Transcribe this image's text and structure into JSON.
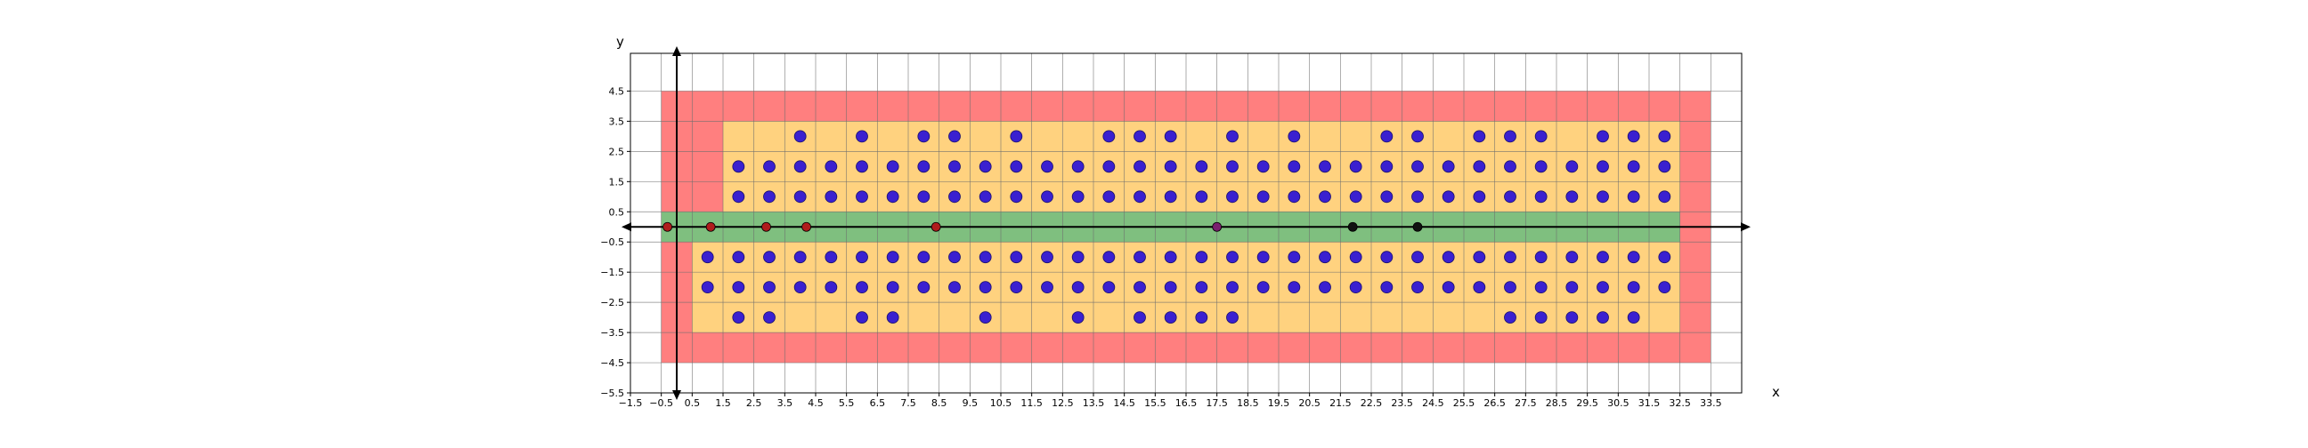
{
  "chart_data": {
    "type": "scatter",
    "title": "",
    "xlabel": "x",
    "ylabel": "y",
    "xlim": [
      -1.5,
      34.5
    ],
    "ylim": [
      -5.5,
      5.75
    ],
    "grid": true,
    "x_ticks": [
      "-1.5",
      "-0.5",
      "0.5",
      "1.5",
      "2.5",
      "3.5",
      "4.5",
      "5.5",
      "6.5",
      "7.5",
      "8.5",
      "9.5",
      "10.5",
      "11.5",
      "12.5",
      "13.5",
      "14.5",
      "15.5",
      "16.5",
      "17.5",
      "18.5",
      "19.5",
      "20.5",
      "21.5",
      "22.5",
      "23.5",
      "24.5",
      "25.5",
      "26.5",
      "27.5",
      "28.5",
      "29.5",
      "30.5",
      "31.5",
      "32.5",
      "33.5"
    ],
    "y_ticks": [
      "4.5",
      "3.5",
      "2.5",
      "1.5",
      "0.5",
      "-0.5",
      "-1.5",
      "-2.5",
      "-3.5",
      "-4.5",
      "-5.5"
    ],
    "regions": [
      {
        "color": "#ff7f7f",
        "x": [
          -0.5,
          33.5
        ],
        "y": [
          -4.5,
          4.5
        ]
      },
      {
        "color": "#ffd27f",
        "x": [
          1.5,
          32.5
        ],
        "y": [
          0.5,
          3.5
        ]
      },
      {
        "color": "#ffd27f",
        "x": [
          0.5,
          32.5
        ],
        "y": [
          -3.5,
          -0.5
        ]
      },
      {
        "color": "#7fbf7f",
        "x": [
          -0.5,
          32.5
        ],
        "y": [
          -0.5,
          0.5
        ]
      }
    ],
    "series": [
      {
        "color": "#3a20d0",
        "rows": [
          {
            "y": 3,
            "x": [
              4,
              6,
              8,
              9,
              11,
              14,
              15,
              16,
              18,
              20,
              23,
              24,
              26,
              27,
              28,
              30,
              31,
              32
            ]
          },
          {
            "y": 2,
            "x": [
              2,
              3,
              4,
              5,
              6,
              7,
              8,
              9,
              10,
              11,
              12,
              13,
              14,
              15,
              16,
              17,
              18,
              19,
              20,
              21,
              22,
              23,
              24,
              25,
              26,
              27,
              28,
              29,
              30,
              31,
              32
            ]
          },
          {
            "y": 1,
            "x": [
              2,
              3,
              4,
              5,
              6,
              7,
              8,
              9,
              10,
              11,
              12,
              13,
              14,
              15,
              16,
              17,
              18,
              19,
              20,
              21,
              22,
              23,
              24,
              25,
              26,
              27,
              28,
              29,
              30,
              31,
              32
            ]
          },
          {
            "y": -1,
            "x": [
              1,
              2,
              3,
              4,
              5,
              6,
              7,
              8,
              9,
              10,
              11,
              12,
              13,
              14,
              15,
              16,
              17,
              18,
              19,
              20,
              21,
              22,
              23,
              24,
              25,
              26,
              27,
              28,
              29,
              30,
              31,
              32
            ]
          },
          {
            "y": -2,
            "x": [
              1,
              2,
              3,
              4,
              5,
              6,
              7,
              8,
              9,
              10,
              11,
              12,
              13,
              14,
              15,
              16,
              17,
              18,
              19,
              20,
              21,
              22,
              23,
              24,
              25,
              26,
              27,
              28,
              29,
              30,
              31,
              32
            ]
          },
          {
            "y": -3,
            "x": [
              2,
              3,
              6,
              7,
              10,
              13,
              15,
              16,
              17,
              18,
              27,
              28,
              29,
              30,
              31
            ]
          }
        ]
      },
      {
        "color": "#b01c1c",
        "x": [
          -0.3,
          1.1,
          2.9,
          4.2,
          8.4
        ],
        "y": [
          0,
          0,
          0,
          0,
          0
        ]
      },
      {
        "color": "#7a1f6e",
        "x": [
          17.5
        ],
        "y": [
          0
        ]
      },
      {
        "color": "#111111",
        "x": [
          21.9,
          24.0
        ],
        "y": [
          0,
          0
        ]
      }
    ]
  }
}
